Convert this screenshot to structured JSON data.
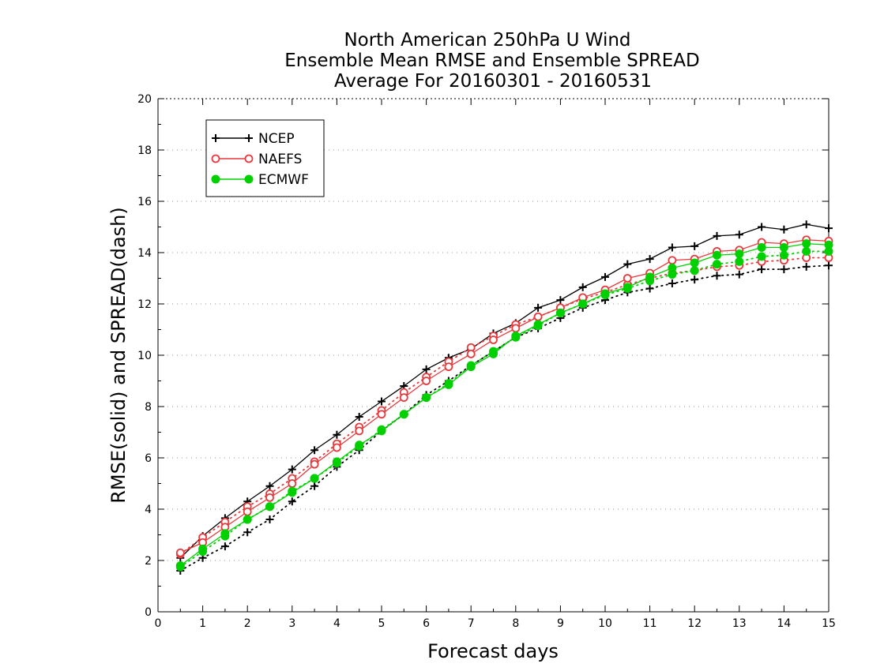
{
  "chart_data": {
    "type": "line",
    "title": [
      "North American 250hPa U Wind",
      "Ensemble Mean RMSE and Ensemble SPREAD",
      "Average For 20160301 - 20160531"
    ],
    "xlabel": "Forecast days",
    "ylabel": "RMSE(solid) and SPREAD(dash)",
    "xlim": [
      0,
      15
    ],
    "ylim": [
      0,
      20
    ],
    "xticks": [
      0,
      1,
      2,
      3,
      4,
      5,
      6,
      7,
      8,
      9,
      10,
      11,
      12,
      13,
      14,
      15
    ],
    "yticks": [
      0,
      2,
      4,
      6,
      8,
      10,
      12,
      14,
      16,
      18,
      20
    ],
    "grid": "horizontal dotted",
    "legend_position": "top-left",
    "x": [
      0.5,
      1,
      1.5,
      2,
      2.5,
      3,
      3.5,
      4,
      4.5,
      5,
      5.5,
      6,
      6.5,
      7,
      7.5,
      8,
      8.5,
      9,
      9.5,
      10,
      10.5,
      11,
      11.5,
      12,
      12.5,
      13,
      13.5,
      14,
      14.5,
      15
    ],
    "series": [
      {
        "name": "NCEP",
        "marker": "plus",
        "color": "#000000",
        "rmse": [
          2.1,
          2.95,
          3.65,
          4.3,
          4.9,
          5.55,
          6.3,
          6.9,
          7.6,
          8.2,
          8.8,
          9.45,
          9.9,
          10.25,
          10.85,
          11.25,
          11.85,
          12.15,
          12.65,
          13.05,
          13.55,
          13.75,
          14.2,
          14.25,
          14.65,
          14.7,
          15.0,
          14.9,
          15.1,
          14.95
        ],
        "spread": [
          1.6,
          2.1,
          2.55,
          3.1,
          3.6,
          4.3,
          4.9,
          5.65,
          6.3,
          7.05,
          7.7,
          8.45,
          9.0,
          9.6,
          10.15,
          10.7,
          11.05,
          11.45,
          11.85,
          12.15,
          12.45,
          12.6,
          12.8,
          12.95,
          13.1,
          13.15,
          13.35,
          13.35,
          13.45,
          13.5
        ]
      },
      {
        "name": "NAEFS",
        "marker": "open-circle",
        "color": "#e8393d",
        "rmse": [
          2.3,
          2.7,
          3.3,
          3.9,
          4.45,
          5.0,
          5.75,
          6.4,
          7.05,
          7.7,
          8.35,
          9.0,
          9.55,
          10.05,
          10.6,
          11.05,
          11.5,
          11.85,
          12.25,
          12.55,
          13.0,
          13.2,
          13.7,
          13.75,
          14.05,
          14.1,
          14.4,
          14.35,
          14.5,
          14.45
        ],
        "spread": [
          2.25,
          2.9,
          3.5,
          4.1,
          4.6,
          5.2,
          5.85,
          6.55,
          7.2,
          7.85,
          8.55,
          9.15,
          9.75,
          10.3,
          10.75,
          11.2,
          11.5,
          11.85,
          12.2,
          12.45,
          12.75,
          13.0,
          13.2,
          13.3,
          13.45,
          13.5,
          13.65,
          13.7,
          13.8,
          13.8
        ]
      },
      {
        "name": "ECMWF",
        "marker": "filled-circle",
        "color": "#00d000",
        "rmse": [
          1.8,
          2.45,
          3.05,
          3.6,
          4.1,
          4.65,
          5.2,
          5.85,
          6.5,
          7.05,
          7.7,
          8.35,
          8.85,
          9.55,
          10.05,
          10.75,
          11.2,
          11.65,
          12.0,
          12.4,
          12.65,
          13.05,
          13.4,
          13.6,
          13.9,
          13.95,
          14.2,
          14.2,
          14.35,
          14.3
        ],
        "spread": [
          1.75,
          2.35,
          2.95,
          3.6,
          4.1,
          4.7,
          5.2,
          5.8,
          6.45,
          7.1,
          7.7,
          8.35,
          8.9,
          9.6,
          10.15,
          10.7,
          11.15,
          11.65,
          12.0,
          12.35,
          12.6,
          12.9,
          13.15,
          13.3,
          13.55,
          13.65,
          13.85,
          13.9,
          14.05,
          14.05
        ]
      }
    ]
  }
}
